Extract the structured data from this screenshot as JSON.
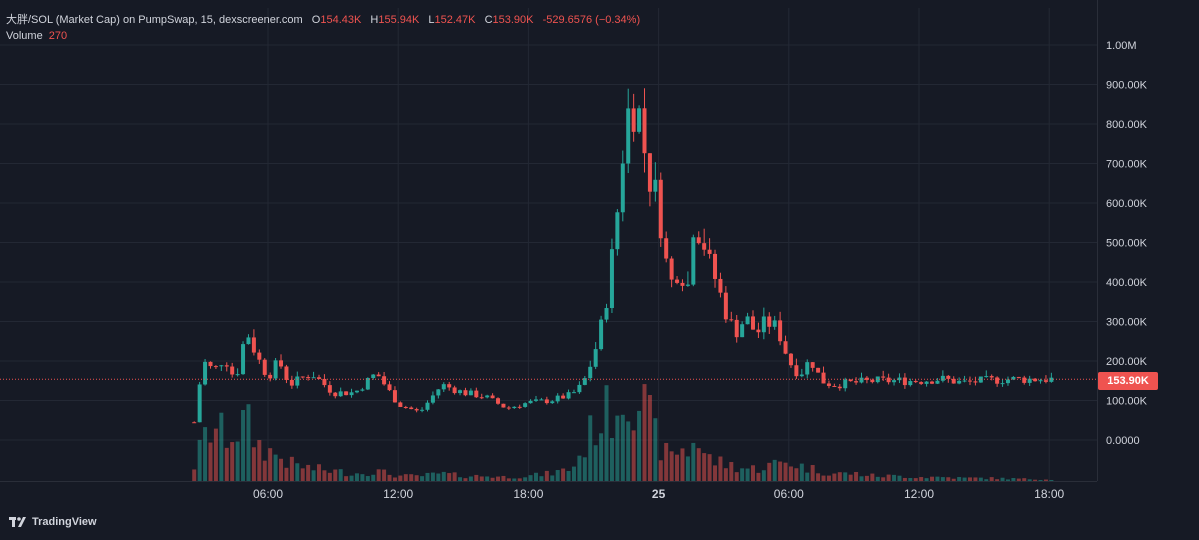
{
  "header": {
    "symbol": "大胖/SOL (Market Cap) on PumpSwap, 15, dexscreener.com",
    "open_key": "O",
    "open": "154.43K",
    "high_key": "H",
    "high": "155.94K",
    "low_key": "L",
    "low": "152.47K",
    "close_key": "C",
    "close": "153.90K",
    "change": "-529.6576 (−0.34%)"
  },
  "volume_legend": {
    "label": "Volume",
    "value": "270"
  },
  "last_price_label": "153.90K",
  "brand": "TradingView",
  "colors": {
    "up": "#26a69a",
    "down": "#ef5350",
    "background": "#161a25",
    "grid": "#232834",
    "text": "#d1d4dc"
  },
  "chart_data": {
    "type": "candlestick",
    "timeframe": "15",
    "y_axis": {
      "ticks": [
        "0.0000",
        "100.00K",
        "200.00K",
        "300.00K",
        "400.00K",
        "500.00K",
        "600.00K",
        "700.00K",
        "800.00K",
        "900.00K",
        "1.00M"
      ],
      "tick_values": [
        0,
        100000,
        200000,
        300000,
        400000,
        500000,
        600000,
        700000,
        800000,
        900000,
        1000000
      ],
      "ylim": [
        -100000,
        1050000
      ]
    },
    "x_axis": {
      "ticks": [
        "06:00",
        "12:00",
        "18:00",
        "25",
        "06:00",
        "12:00",
        "18:00"
      ],
      "tick_hours": [
        6,
        12,
        18,
        24,
        30,
        36,
        42
      ]
    },
    "last_price": 153900,
    "price_anchors": {
      "hours": [
        2.6,
        3,
        3.5,
        4,
        4.5,
        5,
        5.5,
        6,
        6.5,
        7,
        8,
        9,
        10,
        11,
        12,
        13,
        14,
        15,
        16,
        17,
        18,
        19,
        20,
        20.5,
        21,
        21.5,
        22,
        22.5,
        23,
        23.5,
        24,
        24.3,
        24.6,
        25,
        25.3,
        25.6,
        26,
        26.3,
        26.6,
        27,
        27.5,
        28,
        28.5,
        29,
        29.5,
        30,
        30.5,
        31,
        31.5,
        32,
        33,
        34,
        35,
        36,
        37,
        38,
        39,
        40,
        41,
        42,
        42.3
      ],
      "closes": [
        45000,
        200000,
        175000,
        210000,
        150000,
        280000,
        210000,
        160000,
        200000,
        140000,
        170000,
        120000,
        120000,
        170000,
        90000,
        70000,
        140000,
        120000,
        110000,
        80000,
        95000,
        100000,
        115000,
        140000,
        210000,
        320000,
        520000,
        820000,
        860000,
        680000,
        600000,
        460000,
        400000,
        450000,
        360000,
        550000,
        520000,
        450000,
        410000,
        340000,
        270000,
        310000,
        270000,
        300000,
        280000,
        200000,
        165000,
        205000,
        150000,
        140000,
        145000,
        150000,
        150000,
        150000,
        155000,
        145000,
        150000,
        153900,
        153900,
        153900,
        153900
      ],
      "volumes": [
        30,
        80,
        110,
        90,
        100,
        120,
        75,
        60,
        50,
        35,
        25,
        20,
        15,
        20,
        10,
        10,
        15,
        10,
        10,
        8,
        10,
        15,
        25,
        60,
        110,
        130,
        150,
        190,
        180,
        130,
        75,
        55,
        50,
        70,
        50,
        90,
        60,
        45,
        40,
        35,
        30,
        25,
        25,
        30,
        35,
        40,
        30,
        25,
        20,
        15,
        15,
        10,
        10,
        8,
        8,
        6,
        6,
        5,
        4,
        3,
        3
      ]
    }
  }
}
